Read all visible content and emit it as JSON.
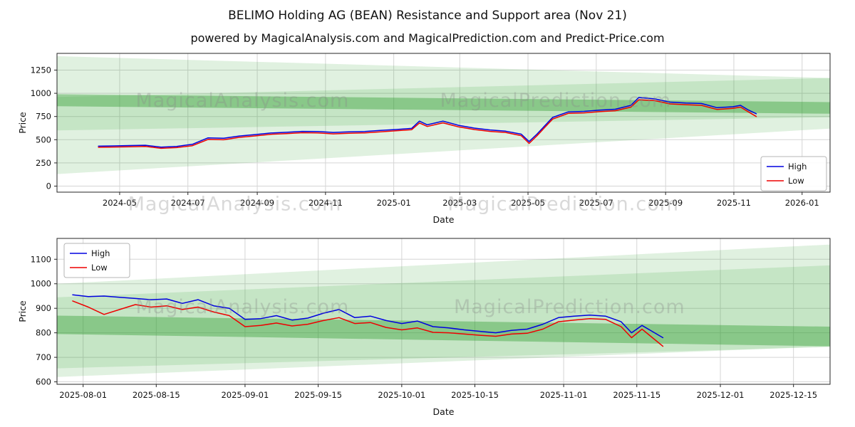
{
  "page": {
    "title": "BELIMO Holding AG (BEAN) Resistance and Support area (Nov 21)",
    "subtitle": "powered by MagicalAnalysis.com and MagicalPrediction.com and Predict-Price.com"
  },
  "colors": {
    "high": "#0000e0",
    "low": "#ee0000",
    "band": "#2f9e2f",
    "grid": "#d5d5d5",
    "spine": "#262626",
    "text": "#111111",
    "watermark": "#888888"
  },
  "chart_data": [
    {
      "type": "line",
      "xlabel": "Date",
      "ylabel": "Price",
      "xlim": [
        "2024-03-06",
        "2026-01-26"
      ],
      "ylim": [
        -65,
        1430
      ],
      "legend_position": "right",
      "grid": true,
      "x_ticks": [
        {
          "date": "2024-05-01",
          "label": "2024-05"
        },
        {
          "date": "2024-07-01",
          "label": "2024-07"
        },
        {
          "date": "2024-09-01",
          "label": "2024-09"
        },
        {
          "date": "2024-11-01",
          "label": "2024-11"
        },
        {
          "date": "2025-01-01",
          "label": "2025-01"
        },
        {
          "date": "2025-03-01",
          "label": "2025-03"
        },
        {
          "date": "2025-05-01",
          "label": "2025-05"
        },
        {
          "date": "2025-07-01",
          "label": "2025-07"
        },
        {
          "date": "2025-09-01",
          "label": "2025-09"
        },
        {
          "date": "2025-11-01",
          "label": "2025-11"
        },
        {
          "date": "2026-01-01",
          "label": "2026-01"
        }
      ],
      "y_ticks": [
        0,
        250,
        500,
        750,
        1000,
        1250
      ],
      "dates": [
        "2024-04-12",
        "2024-04-26",
        "2024-05-10",
        "2024-05-24",
        "2024-06-07",
        "2024-06-21",
        "2024-07-05",
        "2024-07-19",
        "2024-08-02",
        "2024-08-16",
        "2024-08-30",
        "2024-09-13",
        "2024-09-27",
        "2024-10-11",
        "2024-10-25",
        "2024-11-08",
        "2024-11-22",
        "2024-12-06",
        "2024-12-20",
        "2025-01-03",
        "2025-01-17",
        "2025-01-24",
        "2025-01-31",
        "2025-02-14",
        "2025-02-28",
        "2025-03-14",
        "2025-03-28",
        "2025-04-11",
        "2025-04-25",
        "2025-05-02",
        "2025-05-09",
        "2025-05-23",
        "2025-06-06",
        "2025-06-20",
        "2025-07-04",
        "2025-07-18",
        "2025-08-01",
        "2025-08-08",
        "2025-08-22",
        "2025-09-05",
        "2025-09-19",
        "2025-10-03",
        "2025-10-17",
        "2025-10-31",
        "2025-11-07",
        "2025-11-14",
        "2025-11-21"
      ],
      "series": [
        {
          "name": "High",
          "color_key": "high",
          "values": [
            430,
            433,
            437,
            440,
            420,
            428,
            450,
            520,
            515,
            540,
            555,
            572,
            580,
            590,
            588,
            578,
            585,
            588,
            600,
            610,
            622,
            700,
            660,
            700,
            655,
            625,
            605,
            592,
            560,
            480,
            560,
            740,
            800,
            805,
            818,
            828,
            870,
            955,
            940,
            905,
            895,
            890,
            845,
            855,
            870,
            820,
            780
          ]
        },
        {
          "name": "Low",
          "color_key": "low",
          "values": [
            418,
            421,
            424,
            427,
            407,
            415,
            436,
            503,
            499,
            525,
            541,
            558,
            566,
            575,
            573,
            563,
            570,
            574,
            585,
            596,
            607,
            680,
            643,
            682,
            638,
            610,
            590,
            578,
            544,
            460,
            542,
            722,
            784,
            789,
            802,
            812,
            851,
            930,
            922,
            886,
            877,
            870,
            826,
            837,
            851,
            800,
            750
          ]
        }
      ],
      "bands": [
        {
          "top": [
            1400,
            1165
          ],
          "bottom": [
            130,
            620
          ],
          "opacity": 0.15
        },
        {
          "top": [
            960,
            1165
          ],
          "bottom": [
            600,
            742
          ],
          "opacity": 0.15
        },
        {
          "top": [
            990,
            905
          ],
          "bottom": [
            860,
            780
          ],
          "opacity": 0.4
        }
      ],
      "watermarks": [
        "MagicalAnalysis.com",
        "MagicalPrediction.com",
        "MagicalAnalysis.com",
        "MagicalPrediction.com"
      ]
    },
    {
      "type": "line",
      "xlabel": "Date",
      "ylabel": "Price",
      "xlim": [
        "2025-07-27",
        "2025-12-22"
      ],
      "ylim": [
        590,
        1185
      ],
      "legend_position": "upper-left",
      "grid": true,
      "x_ticks": [
        {
          "date": "2025-08-01",
          "label": "2025-08-01"
        },
        {
          "date": "2025-08-15",
          "label": "2025-08-15"
        },
        {
          "date": "2025-09-01",
          "label": "2025-09-01"
        },
        {
          "date": "2025-09-15",
          "label": "2025-09-15"
        },
        {
          "date": "2025-10-01",
          "label": "2025-10-01"
        },
        {
          "date": "2025-10-15",
          "label": "2025-10-15"
        },
        {
          "date": "2025-11-01",
          "label": "2025-11-01"
        },
        {
          "date": "2025-11-15",
          "label": "2025-11-15"
        },
        {
          "date": "2025-12-01",
          "label": "2025-12-01"
        },
        {
          "date": "2025-12-15",
          "label": "2025-12-15"
        }
      ],
      "y_ticks": [
        600,
        700,
        800,
        900,
        1000,
        1100
      ],
      "dates": [
        "2025-07-30",
        "2025-08-02",
        "2025-08-05",
        "2025-08-08",
        "2025-08-11",
        "2025-08-14",
        "2025-08-17",
        "2025-08-20",
        "2025-08-23",
        "2025-08-26",
        "2025-08-29",
        "2025-09-01",
        "2025-09-04",
        "2025-09-07",
        "2025-09-10",
        "2025-09-13",
        "2025-09-16",
        "2025-09-19",
        "2025-09-22",
        "2025-09-25",
        "2025-09-28",
        "2025-10-01",
        "2025-10-04",
        "2025-10-07",
        "2025-10-10",
        "2025-10-13",
        "2025-10-16",
        "2025-10-19",
        "2025-10-22",
        "2025-10-25",
        "2025-10-28",
        "2025-10-31",
        "2025-11-03",
        "2025-11-06",
        "2025-11-09",
        "2025-11-12",
        "2025-11-14",
        "2025-11-16",
        "2025-11-18",
        "2025-11-20"
      ],
      "series": [
        {
          "name": "High",
          "color_key": "high",
          "values": [
            955,
            948,
            950,
            945,
            940,
            935,
            938,
            920,
            935,
            910,
            900,
            855,
            858,
            870,
            852,
            860,
            880,
            895,
            862,
            868,
            850,
            838,
            848,
            825,
            820,
            812,
            806,
            800,
            810,
            815,
            835,
            862,
            868,
            872,
            868,
            845,
            800,
            830,
            805,
            780
          ]
        },
        {
          "name": "Low",
          "color_key": "low",
          "values": [
            930,
            905,
            875,
            895,
            915,
            905,
            910,
            895,
            905,
            885,
            870,
            825,
            830,
            840,
            828,
            835,
            850,
            862,
            838,
            842,
            822,
            812,
            820,
            802,
            800,
            795,
            790,
            786,
            795,
            798,
            815,
            845,
            852,
            858,
            855,
            825,
            780,
            815,
            780,
            745
          ]
        }
      ],
      "bands": [
        {
          "top": [
            1000,
            1160
          ],
          "bottom": [
            620,
            745
          ],
          "opacity": 0.15
        },
        {
          "top": [
            945,
            1075
          ],
          "bottom": [
            655,
            742
          ],
          "opacity": 0.15
        },
        {
          "top": [
            870,
            825
          ],
          "bottom": [
            795,
            745
          ],
          "opacity": 0.4
        }
      ],
      "watermarks": [
        "MagicalAnalysis.com",
        "MagicalPrediction.com"
      ]
    }
  ]
}
